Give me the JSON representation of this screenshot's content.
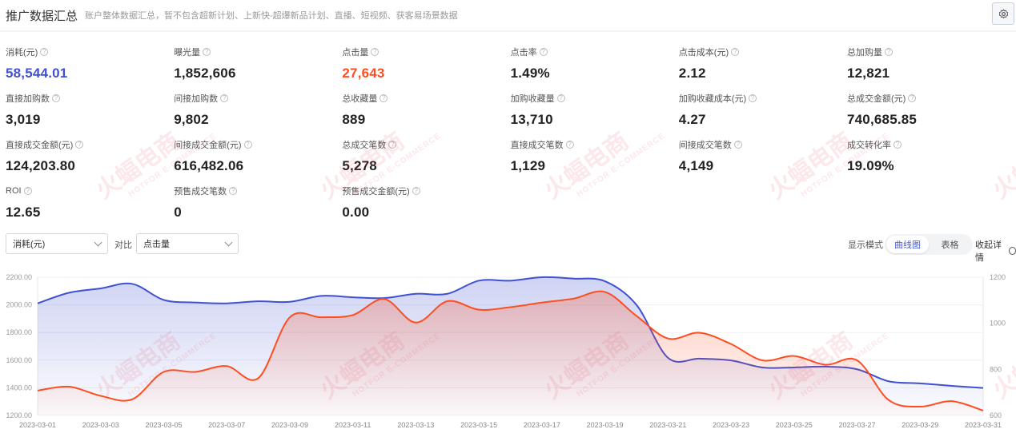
{
  "header": {
    "title": "推广数据汇总",
    "subtitle": "账户整体数据汇总，暂不包含超新计划、上新快-超爆新品计划、直播、短视频、获客易场景数据",
    "settings_icon": "gear-icon"
  },
  "colors": {
    "primary": "#3f51d0",
    "click": "#ff4d1f",
    "text": "#222"
  },
  "stats": [
    {
      "label": "消耗(元)",
      "value": "58,544.01",
      "color": "#3f51d0"
    },
    {
      "label": "曝光量",
      "value": "1,852,606"
    },
    {
      "label": "点击量",
      "value": "27,643",
      "color": "#ff4d1f"
    },
    {
      "label": "点击率",
      "value": "1.49%"
    },
    {
      "label": "点击成本(元)",
      "value": "2.12"
    },
    {
      "label": "总加购量",
      "value": "12,821"
    },
    {
      "label": "直接加购数",
      "value": "3,019"
    },
    {
      "label": "间接加购数",
      "value": "9,802"
    },
    {
      "label": "总收藏量",
      "value": "889"
    },
    {
      "label": "加购收藏量",
      "value": "13,710"
    },
    {
      "label": "加购收藏成本(元)",
      "value": "4.27"
    },
    {
      "label": "总成交金额(元)",
      "value": "740,685.85"
    },
    {
      "label": "直接成交金额(元)",
      "value": "124,203.80"
    },
    {
      "label": "间接成交金额(元)",
      "value": "616,482.06"
    },
    {
      "label": "总成交笔数",
      "value": "5,278"
    },
    {
      "label": "直接成交笔数",
      "value": "1,129"
    },
    {
      "label": "间接成交笔数",
      "value": "4,149"
    },
    {
      "label": "成交转化率",
      "value": "19.09%"
    },
    {
      "label": "ROI",
      "value": "12.65"
    },
    {
      "label": "预售成交笔数",
      "value": "0"
    },
    {
      "label": "预售成交金额(元)",
      "value": "0.00"
    }
  ],
  "controls": {
    "metric1": "消耗(元)",
    "compare_label": "对比",
    "metric2": "点击量",
    "mode_label": "显示模式",
    "modes": [
      "曲线图",
      "表格"
    ],
    "active_mode": "曲线图",
    "collapse": "收起详情"
  },
  "watermark": {
    "text": "火蝠电商",
    "sub": "HOTFOR E-COMMERCE"
  },
  "chart_data": {
    "type": "area",
    "x": [
      "2023-03-01",
      "2023-03-02",
      "2023-03-03",
      "2023-03-04",
      "2023-03-05",
      "2023-03-06",
      "2023-03-07",
      "2023-03-08",
      "2023-03-09",
      "2023-03-10",
      "2023-03-11",
      "2023-03-12",
      "2023-03-13",
      "2023-03-14",
      "2023-03-15",
      "2023-03-16",
      "2023-03-17",
      "2023-03-18",
      "2023-03-19",
      "2023-03-20",
      "2023-03-21",
      "2023-03-22",
      "2023-03-23",
      "2023-03-24",
      "2023-03-25",
      "2023-03-26",
      "2023-03-27",
      "2023-03-28",
      "2023-03-29",
      "2023-03-30",
      "2023-03-31"
    ],
    "x_ticks": [
      "2023-03-01",
      "2023-03-03",
      "2023-03-05",
      "2023-03-07",
      "2023-03-09",
      "2023-03-11",
      "2023-03-13",
      "2023-03-15",
      "2023-03-17",
      "2023-03-19",
      "2023-03-21",
      "2023-03-23",
      "2023-03-25",
      "2023-03-27",
      "2023-03-29",
      "2023-03-31"
    ],
    "y_left": {
      "range": [
        1200,
        2200
      ],
      "ticks": [
        "2200.00",
        "2000.00",
        "1800.00",
        "1600.00",
        "1400.00",
        "1200.00"
      ]
    },
    "y_right": {
      "range": [
        600,
        1200
      ],
      "ticks": [
        "1200",
        "1000",
        "800",
        "600"
      ]
    },
    "grid": true,
    "series": [
      {
        "axis": "left",
        "color": "#3f51d0",
        "values": [
          2011,
          2088,
          2119,
          2152,
          2036,
          2017,
          2011,
          2026,
          2022,
          2065,
          2055,
          2049,
          2080,
          2080,
          2175,
          2175,
          2200,
          2190,
          2171,
          2000,
          1617,
          1611,
          1598,
          1547,
          1547,
          1553,
          1534,
          1447,
          1432,
          1414,
          1399
        ]
      },
      {
        "axis": "right",
        "color": "#ff4d1f",
        "values": [
          708,
          725,
          685,
          670,
          789,
          789,
          814,
          762,
          1026,
          1026,
          1036,
          1105,
          1003,
          1096,
          1059,
          1070,
          1090,
          1107,
          1136,
          1032,
          934,
          959,
          910,
          839,
          858,
          820,
          839,
          667,
          638,
          662,
          621
        ]
      }
    ]
  }
}
